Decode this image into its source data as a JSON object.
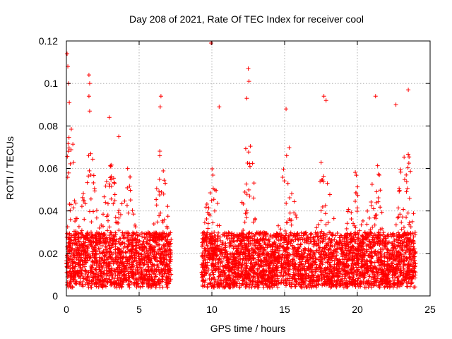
{
  "chart_data": {
    "type": "scatter",
    "title": "Day 208 of 2021, Rate Of TEC Index for receiver cool",
    "xlabel": "GPS time / hours",
    "ylabel": "ROTI / TECUs",
    "xlim": [
      0,
      25
    ],
    "ylim": [
      0,
      0.12
    ],
    "xticks": [
      0,
      5,
      10,
      15,
      20,
      25
    ],
    "yticks": [
      0,
      0.02,
      0.04,
      0.06,
      0.08,
      0.1,
      0.12
    ],
    "xtick_labels": [
      "0",
      "5",
      "10",
      "15",
      "20",
      "25"
    ],
    "ytick_labels": [
      "0",
      "0.02",
      "0.04",
      "0.06",
      "0.08",
      "0.1",
      "0.12"
    ],
    "grid": true,
    "marker": "+",
    "series_color": "#ff0000",
    "data_gaps_hours": [
      [
        7.2,
        9.3
      ]
    ],
    "data_coverage_hours": [
      [
        0,
        7.2
      ],
      [
        9.3,
        24.0
      ]
    ],
    "typical_range": [
      0.005,
      0.03
    ],
    "notable_points": [
      {
        "x": 0.05,
        "y": 0.114
      },
      {
        "x": 0.1,
        "y": 0.108
      },
      {
        "x": 0.15,
        "y": 0.1
      },
      {
        "x": 0.2,
        "y": 0.091
      },
      {
        "x": 1.55,
        "y": 0.104
      },
      {
        "x": 1.6,
        "y": 0.1
      },
      {
        "x": 1.55,
        "y": 0.094
      },
      {
        "x": 1.6,
        "y": 0.087
      },
      {
        "x": 2.95,
        "y": 0.084
      },
      {
        "x": 3.6,
        "y": 0.075
      },
      {
        "x": 6.5,
        "y": 0.094
      },
      {
        "x": 6.45,
        "y": 0.089
      },
      {
        "x": 9.95,
        "y": 0.119
      },
      {
        "x": 10.5,
        "y": 0.089
      },
      {
        "x": 12.5,
        "y": 0.107
      },
      {
        "x": 12.55,
        "y": 0.101
      },
      {
        "x": 12.4,
        "y": 0.093
      },
      {
        "x": 15.1,
        "y": 0.088
      },
      {
        "x": 17.7,
        "y": 0.094
      },
      {
        "x": 17.85,
        "y": 0.092
      },
      {
        "x": 21.25,
        "y": 0.094
      },
      {
        "x": 22.65,
        "y": 0.09
      },
      {
        "x": 23.5,
        "y": 0.097
      }
    ]
  }
}
